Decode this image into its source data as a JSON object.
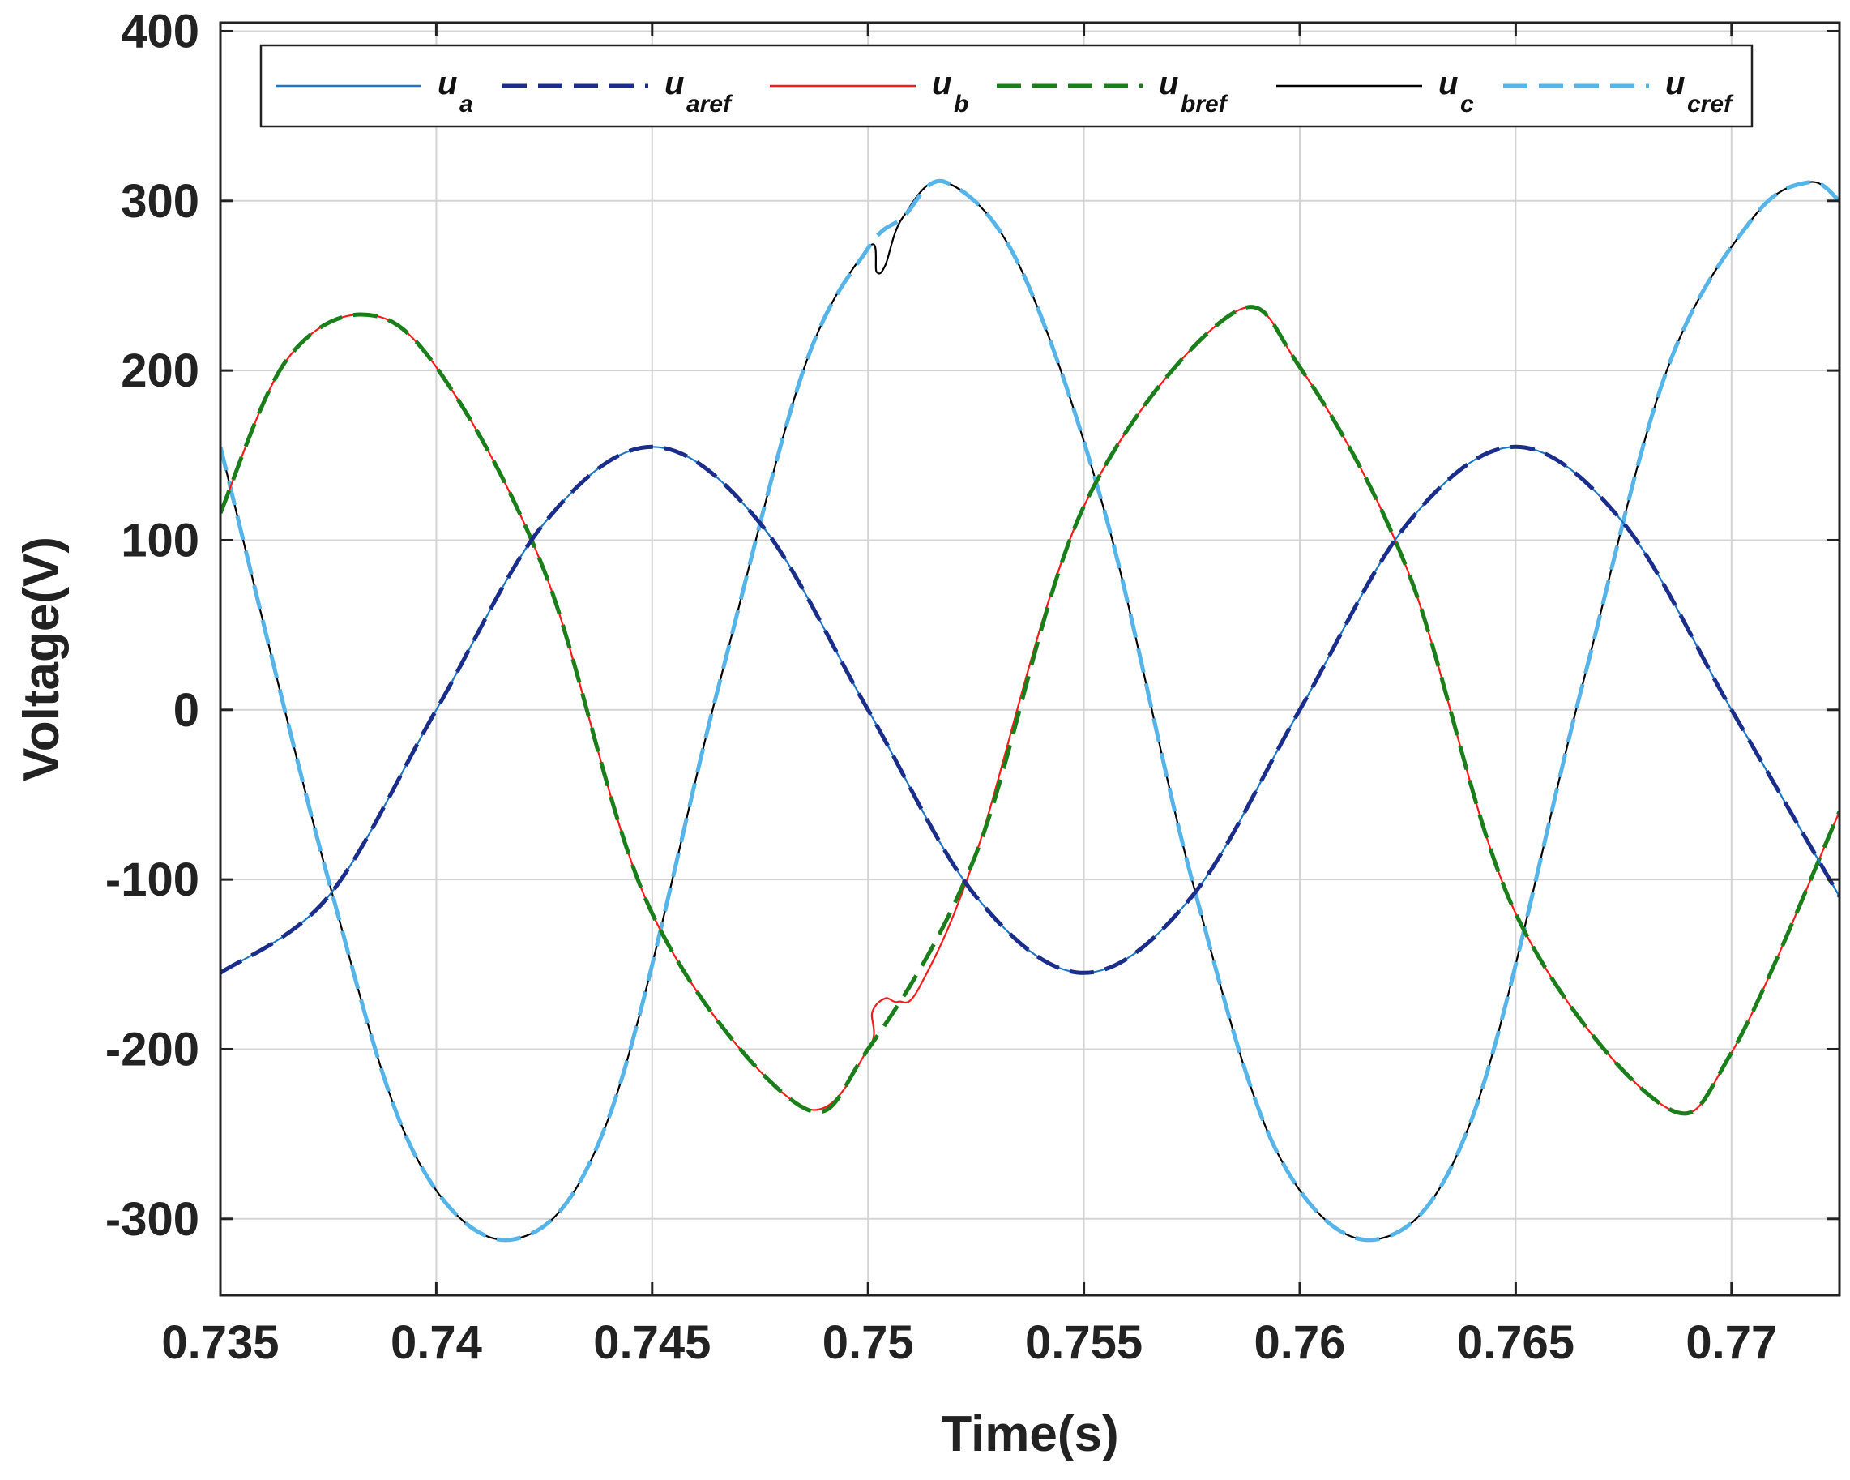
{
  "chart_data": {
    "type": "line",
    "xlabel": "Time(s)",
    "ylabel": "Voltage(V)",
    "xlim": [
      0.735,
      0.7725
    ],
    "ylim": [
      -345,
      405
    ],
    "grid": true,
    "legend_position": "top",
    "x_ticks": [
      0.735,
      0.74,
      0.745,
      0.75,
      0.755,
      0.76,
      0.765,
      0.77
    ],
    "x_tick_labels": [
      "0.735",
      "0.74",
      "0.745",
      "0.75",
      "0.755",
      "0.76",
      "0.765",
      "0.77"
    ],
    "y_ticks": [
      400,
      300,
      200,
      100,
      0,
      -100,
      -200,
      -300
    ],
    "y_tick_labels": [
      "400",
      "300",
      "200",
      "100",
      "0",
      "-100",
      "-200",
      "-300"
    ],
    "series": [
      {
        "name": "u_a",
        "main": "u",
        "sub": "a",
        "color": "#1f77c4",
        "style": "solid",
        "x": [
          0.735,
          0.7375,
          0.74,
          0.7425,
          0.745,
          0.7475,
          0.75,
          0.7525,
          0.755,
          0.7575,
          0.76,
          0.7625,
          0.765,
          0.7675,
          0.77,
          0.7725
        ],
        "y": [
          -155,
          -110,
          0,
          110,
          155,
          110,
          0,
          -110,
          -155,
          -110,
          0,
          110,
          155,
          110,
          0,
          -110
        ]
      },
      {
        "name": "u_aref",
        "main": "u",
        "sub": "aref",
        "color": "#1a2d8a",
        "style": "dashed",
        "x": [
          0.735,
          0.7375,
          0.74,
          0.7425,
          0.745,
          0.7475,
          0.75,
          0.7525,
          0.755,
          0.7575,
          0.76,
          0.7625,
          0.765,
          0.7675,
          0.77,
          0.7725
        ],
        "y": [
          -155,
          -110,
          0,
          110,
          155,
          110,
          0,
          -110,
          -155,
          -110,
          0,
          110,
          155,
          110,
          0,
          -110
        ]
      },
      {
        "name": "u_b",
        "main": "u",
        "sub": "b",
        "color": "#ff1a1a",
        "style": "solid",
        "x": [
          0.735,
          0.7365,
          0.7383,
          0.74,
          0.7425,
          0.745,
          0.7484,
          0.75,
          0.7501,
          0.7504,
          0.7507,
          0.7512,
          0.7525,
          0.755,
          0.7584,
          0.76,
          0.7625,
          0.765,
          0.7684,
          0.77,
          0.7725
        ],
        "y": [
          116,
          205,
          233,
          202,
          82,
          -120,
          -233,
          -200,
          -178,
          -170,
          -172,
          -163,
          -85,
          120,
          233,
          202,
          82,
          -120,
          -233,
          -202,
          -60
        ]
      },
      {
        "name": "u_bref",
        "main": "u",
        "sub": "bref",
        "color": "#1a7f1a",
        "style": "dashed",
        "x": [
          0.735,
          0.7365,
          0.7383,
          0.74,
          0.7425,
          0.745,
          0.7484,
          0.75,
          0.7525,
          0.755,
          0.7584,
          0.76,
          0.7625,
          0.765,
          0.7684,
          0.77,
          0.7725
        ],
        "y": [
          116,
          205,
          233,
          202,
          82,
          -120,
          -233,
          -200,
          -85,
          120,
          233,
          202,
          82,
          -120,
          -233,
          -202,
          -60
        ]
      },
      {
        "name": "u_c",
        "main": "u",
        "sub": "c",
        "color": "#000000",
        "style": "solid",
        "x": [
          0.735,
          0.7375,
          0.7395,
          0.7418,
          0.744,
          0.7465,
          0.7485,
          0.75,
          0.7502,
          0.7504,
          0.7508,
          0.7518,
          0.7535,
          0.7555,
          0.7575,
          0.7595,
          0.7618,
          0.764,
          0.7665,
          0.7685,
          0.7705,
          0.7718,
          0.7725
        ],
        "y": [
          155,
          -100,
          -262,
          -312,
          -240,
          10,
          200,
          272,
          258,
          262,
          290,
          311,
          262,
          115,
          -100,
          -262,
          -312,
          -240,
          10,
          200,
          290,
          311,
          300
        ]
      },
      {
        "name": "u_cref",
        "main": "u",
        "sub": "cref",
        "color": "#56b4e9",
        "style": "dashed",
        "x": [
          0.735,
          0.7375,
          0.7395,
          0.7418,
          0.744,
          0.7465,
          0.7485,
          0.75,
          0.7508,
          0.7518,
          0.7535,
          0.7555,
          0.7575,
          0.7595,
          0.7618,
          0.764,
          0.7665,
          0.7685,
          0.7705,
          0.7718,
          0.7725
        ],
        "y": [
          155,
          -100,
          -262,
          -312,
          -240,
          10,
          200,
          272,
          290,
          311,
          262,
          115,
          -100,
          -262,
          -312,
          -240,
          10,
          200,
          290,
          311,
          300
        ]
      }
    ]
  }
}
